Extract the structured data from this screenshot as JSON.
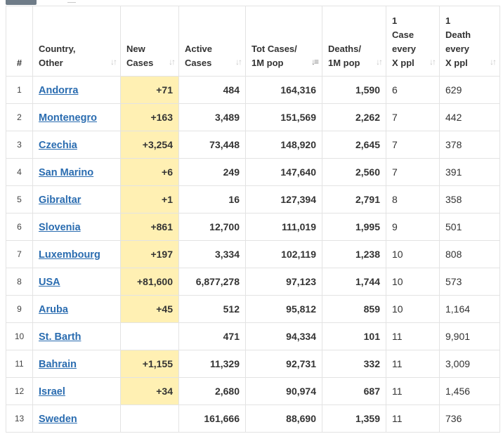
{
  "table": {
    "headers": {
      "num": "#",
      "country": [
        "Country,",
        "Other"
      ],
      "new_cases": [
        "New",
        "Cases"
      ],
      "active_cases": [
        "Active",
        "Cases"
      ],
      "tot_cases": [
        "Tot Cases/",
        "1M pop"
      ],
      "deaths": [
        "Deaths/",
        "1M pop"
      ],
      "case_every": [
        "1",
        "Case",
        "every",
        "X ppl"
      ],
      "death_every": [
        "1",
        "Death",
        "every",
        "X ppl"
      ]
    },
    "sort_icon": "sort-arrows-icon",
    "active_sort_icon": "sort-descending-icon",
    "highlight_color": "#fff0b3",
    "link_color": "#2a6cb0",
    "rows": [
      {
        "num": "1",
        "country": "Andorra",
        "new_cases": "+71",
        "active_cases": "484",
        "tot_cases": "164,316",
        "deaths": "1,590",
        "case_every": "6",
        "death_every": "629"
      },
      {
        "num": "2",
        "country": "Montenegro",
        "new_cases": "+163",
        "active_cases": "3,489",
        "tot_cases": "151,569",
        "deaths": "2,262",
        "case_every": "7",
        "death_every": "442"
      },
      {
        "num": "3",
        "country": "Czechia",
        "new_cases": "+3,254",
        "active_cases": "73,448",
        "tot_cases": "148,920",
        "deaths": "2,645",
        "case_every": "7",
        "death_every": "378"
      },
      {
        "num": "4",
        "country": "San Marino",
        "new_cases": "+6",
        "active_cases": "249",
        "tot_cases": "147,640",
        "deaths": "2,560",
        "case_every": "7",
        "death_every": "391"
      },
      {
        "num": "5",
        "country": "Gibraltar",
        "new_cases": "+1",
        "active_cases": "16",
        "tot_cases": "127,394",
        "deaths": "2,791",
        "case_every": "8",
        "death_every": "358"
      },
      {
        "num": "6",
        "country": "Slovenia",
        "new_cases": "+861",
        "active_cases": "12,700",
        "tot_cases": "111,019",
        "deaths": "1,995",
        "case_every": "9",
        "death_every": "501"
      },
      {
        "num": "7",
        "country": "Luxembourg",
        "new_cases": "+197",
        "active_cases": "3,334",
        "tot_cases": "102,119",
        "deaths": "1,238",
        "case_every": "10",
        "death_every": "808"
      },
      {
        "num": "8",
        "country": "USA",
        "new_cases": "+81,600",
        "active_cases": "6,877,278",
        "tot_cases": "97,123",
        "deaths": "1,744",
        "case_every": "10",
        "death_every": "573"
      },
      {
        "num": "9",
        "country": "Aruba",
        "new_cases": "+45",
        "active_cases": "512",
        "tot_cases": "95,812",
        "deaths": "859",
        "case_every": "10",
        "death_every": "1,164"
      },
      {
        "num": "10",
        "country": "St. Barth",
        "new_cases": "",
        "active_cases": "471",
        "tot_cases": "94,334",
        "deaths": "101",
        "case_every": "11",
        "death_every": "9,901"
      },
      {
        "num": "11",
        "country": "Bahrain",
        "new_cases": "+1,155",
        "active_cases": "11,329",
        "tot_cases": "92,731",
        "deaths": "332",
        "case_every": "11",
        "death_every": "3,009"
      },
      {
        "num": "12",
        "country": "Israel",
        "new_cases": "+34",
        "active_cases": "2,680",
        "tot_cases": "90,974",
        "deaths": "687",
        "case_every": "11",
        "death_every": "1,456"
      },
      {
        "num": "13",
        "country": "Sweden",
        "new_cases": "",
        "active_cases": "161,666",
        "tot_cases": "88,690",
        "deaths": "1,359",
        "case_every": "11",
        "death_every": "736"
      }
    ]
  }
}
